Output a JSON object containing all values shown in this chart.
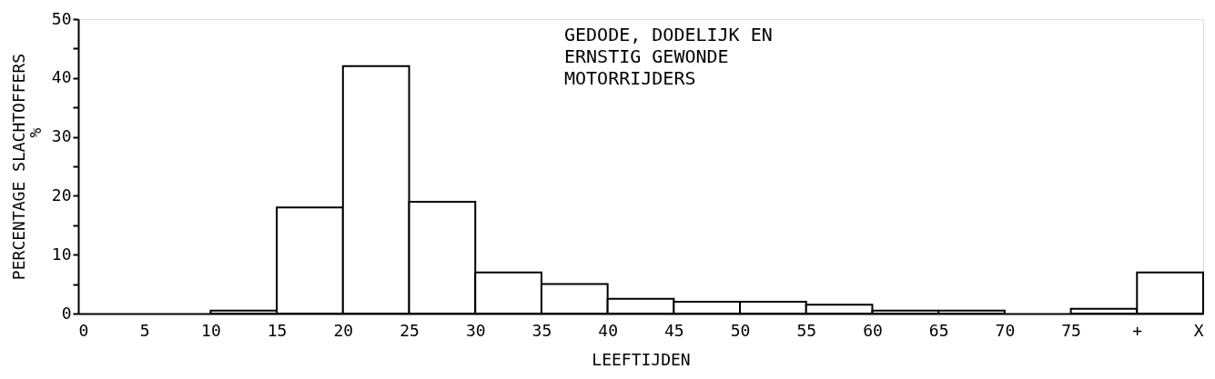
{
  "chart_data": {
    "type": "histogram",
    "title": "GEDODE, DODELIJK EN\nERNSTIG GEWONDE\nMOTORRIJDERS",
    "xlabel": "LEEFTIJDEN",
    "ylabel": "PERCENTAGE SLACHTOFFERS",
    "annotations": [
      "%"
    ],
    "bins": [
      0,
      5,
      10,
      15,
      20,
      25,
      30,
      35,
      40,
      45,
      50,
      55,
      60,
      65,
      70,
      75,
      80,
      85
    ],
    "values": [
      0,
      0,
      0.5,
      18,
      42,
      19,
      7,
      5,
      2.5,
      2,
      2,
      1.5,
      0.5,
      0.5,
      0,
      0.8,
      7
    ],
    "color": "#ffffff",
    "xlim": [
      0,
      85
    ],
    "xticks": [
      0,
      5,
      10,
      15,
      20,
      25,
      30,
      35,
      40,
      45,
      50,
      55,
      60,
      65,
      70,
      75,
      {
        "value": 80,
        "label": "+"
      },
      {
        "value": 85,
        "label": "X"
      }
    ],
    "ylim": [
      0,
      50
    ],
    "yticks": [
      0,
      {
        "value": 5,
        "label": null
      },
      10,
      {
        "value": 15,
        "label": null
      },
      20,
      {
        "value": 25,
        "label": null
      },
      30,
      {
        "value": 35,
        "label": null
      },
      40,
      {
        "value": 45,
        "label": null
      },
      50
    ],
    "grid": false
  }
}
